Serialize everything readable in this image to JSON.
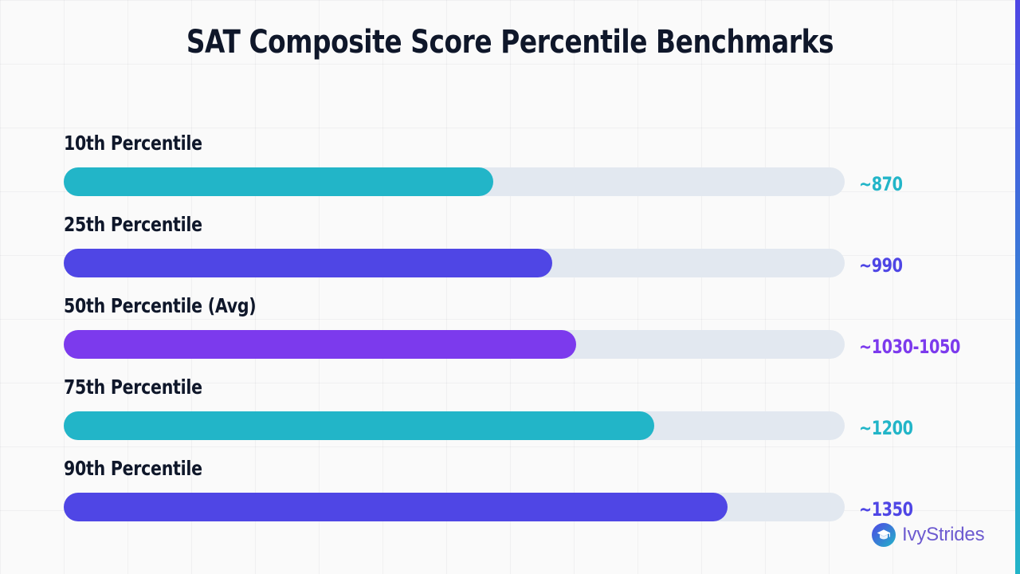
{
  "title": "SAT Composite Score Percentile Benchmarks",
  "theme": {
    "teal": "#22b5c8",
    "indigo": "#4f46e5",
    "violet": "#7c3aed",
    "track": "#e2e8f0",
    "text": "#0f172a"
  },
  "chart_data": {
    "type": "bar",
    "orientation": "horizontal",
    "title": "SAT Composite Score Percentile Benchmarks",
    "xlim": [
      0,
      1600
    ],
    "grid": true,
    "legend": "none",
    "categories": [
      "10th Percentile",
      "25th Percentile",
      "50th Percentile (Avg)",
      "75th Percentile",
      "90th Percentile"
    ],
    "values": [
      880,
      1000,
      1050,
      1210,
      1360
    ],
    "value_labels": [
      "~870",
      "~990",
      "~1030-1050",
      "~1200",
      "~1350"
    ],
    "colors": [
      "#22b5c8",
      "#4f46e5",
      "#7c3aed",
      "#22b5c8",
      "#4f46e5"
    ]
  },
  "brand": {
    "name": "IvyStrides",
    "icon": "graduation-cap-icon"
  }
}
